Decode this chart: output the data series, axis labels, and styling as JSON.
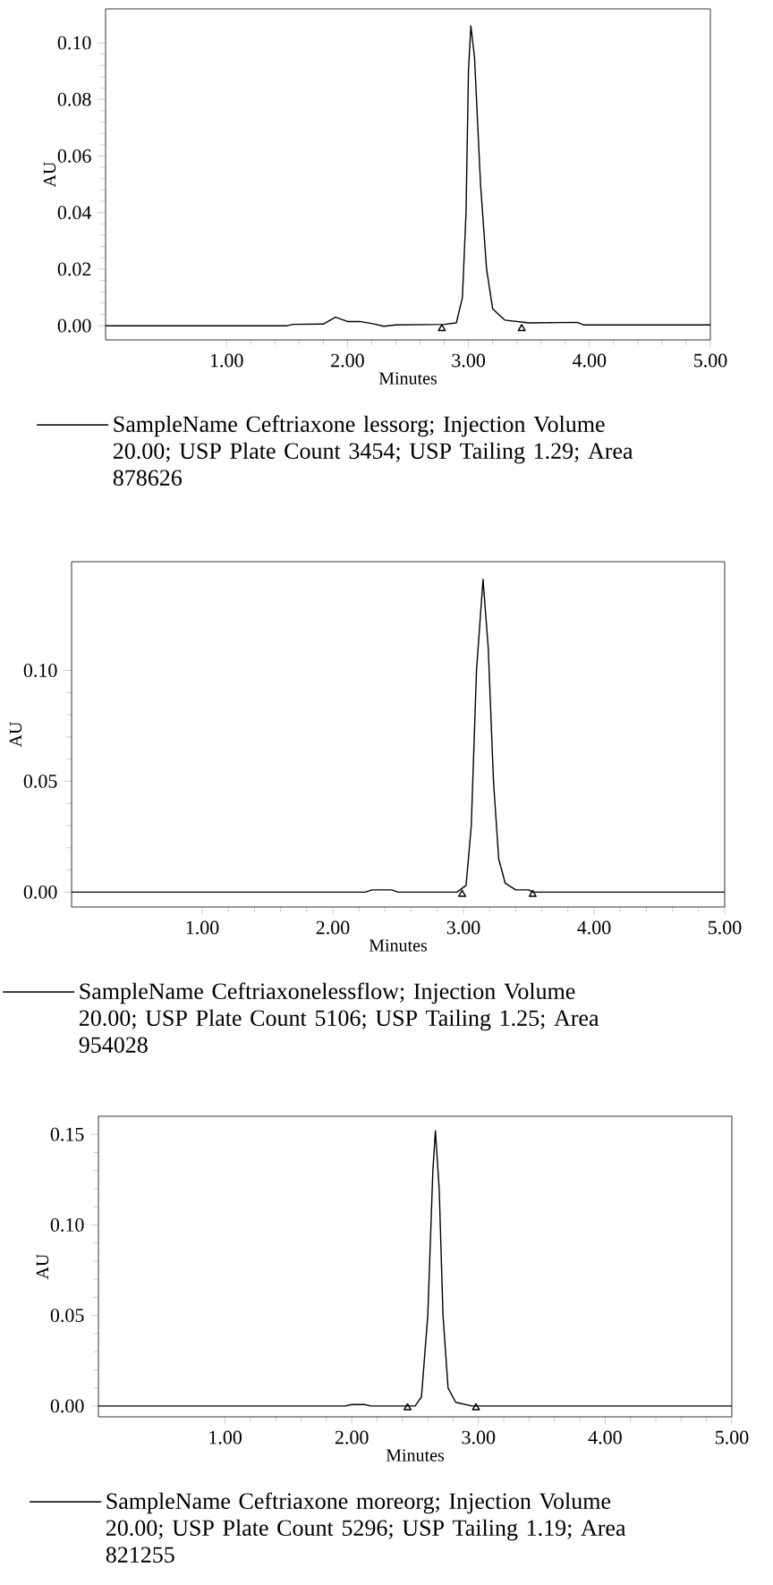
{
  "chart_data": [
    {
      "type": "line",
      "xlabel": "Minutes",
      "ylabel": "AU",
      "legend": "bottom",
      "xlim": [
        0,
        5
      ],
      "ylim": [
        -0.005,
        0.112
      ],
      "xticks": [
        {
          "value": 1,
          "label": "1.00"
        },
        {
          "value": 2,
          "label": "2.00"
        },
        {
          "value": 3,
          "label": "3.00"
        },
        {
          "value": 4,
          "label": "4.00"
        },
        {
          "value": 5,
          "label": "5.00"
        }
      ],
      "yticks": [
        {
          "value": 0,
          "label": "0.00"
        },
        {
          "value": 0.02,
          "label": "0.02"
        },
        {
          "value": 0.04,
          "label": "0.04"
        },
        {
          "value": 0.06,
          "label": "0.06"
        },
        {
          "value": 0.08,
          "label": "0.08"
        },
        {
          "value": 0.1,
          "label": "0.10"
        }
      ],
      "series": [
        {
          "name": "SampleName Ceftriaxone lessorg; Injection Volume 20.00; USP Plate Count 3454; USP Tailing 1.29; Area 878626",
          "color": "#000000",
          "x": [
            0,
            1.5,
            1.55,
            1.8,
            1.9,
            2.0,
            2.1,
            2.2,
            2.3,
            2.4,
            2.8,
            2.9,
            2.95,
            2.98,
            3.0,
            3.02,
            3.05,
            3.1,
            3.15,
            3.2,
            3.3,
            3.5,
            3.9,
            3.95,
            5
          ],
          "values": [
            0,
            0,
            0.0005,
            0.0006,
            0.003,
            0.0015,
            0.0015,
            0.0008,
            -0.0002,
            0.0003,
            0.0005,
            0.001,
            0.01,
            0.04,
            0.09,
            0.106,
            0.095,
            0.05,
            0.02,
            0.006,
            0.002,
            0.001,
            0.0012,
            0.0003,
            0.0003
          ]
        },
        {
          "type": "scatter",
          "marker": "triangle",
          "color": "#000000",
          "x": [
            2.78,
            3.44
          ],
          "values": [
            -0.001,
            -0.001
          ]
        }
      ]
    },
    {
      "type": "line",
      "xlabel": "Minutes",
      "ylabel": "AU",
      "legend": "bottom",
      "xlim": [
        0,
        5
      ],
      "ylim": [
        -0.0067,
        0.149
      ],
      "xticks": [
        {
          "value": 1,
          "label": "1.00"
        },
        {
          "value": 2,
          "label": "2.00"
        },
        {
          "value": 3,
          "label": "3.00"
        },
        {
          "value": 4,
          "label": "4.00"
        },
        {
          "value": 5,
          "label": "5.00"
        }
      ],
      "yticks": [
        {
          "value": 0,
          "label": "0.00"
        },
        {
          "value": 0.05,
          "label": "0.05"
        },
        {
          "value": 0.1,
          "label": "0.10"
        }
      ],
      "series": [
        {
          "name": "SampleName Ceftriaxonelessflow; Injection Volume 20.00; USP Plate Count 5106; USP Tailing 1.25; Area 954028",
          "color": "#000000",
          "x": [
            0,
            2.25,
            2.3,
            2.45,
            2.5,
            2.95,
            3.02,
            3.06,
            3.1,
            3.15,
            3.19,
            3.23,
            3.27,
            3.32,
            3.4,
            3.5,
            3.53,
            5
          ],
          "values": [
            0,
            0,
            0.001,
            0.001,
            0,
            0,
            0.003,
            0.03,
            0.1,
            0.141,
            0.11,
            0.05,
            0.015,
            0.004,
            0.001,
            0.001,
            0,
            0
          ]
        },
        {
          "type": "scatter",
          "marker": "triangle",
          "color": "#000000",
          "x": [
            2.99,
            3.53
          ],
          "values": [
            -0.001,
            -0.001
          ]
        }
      ]
    },
    {
      "type": "line",
      "xlabel": "Minutes",
      "ylabel": "AU",
      "legend": "bottom",
      "xlim": [
        0,
        5
      ],
      "ylim": [
        -0.006,
        0.16
      ],
      "xticks": [
        {
          "value": 1,
          "label": "1.00"
        },
        {
          "value": 2,
          "label": "2.00"
        },
        {
          "value": 3,
          "label": "3.00"
        },
        {
          "value": 4,
          "label": "4.00"
        },
        {
          "value": 5,
          "label": "5.00"
        }
      ],
      "yticks": [
        {
          "value": 0,
          "label": "0.00"
        },
        {
          "value": 0.05,
          "label": "0.05"
        },
        {
          "value": 0.1,
          "label": "0.10"
        },
        {
          "value": 0.15,
          "label": "0.15"
        }
      ],
      "series": [
        {
          "name": "SampleName Ceftriaxone moreorg; Injection Volume 20.00; USP Plate Count 5296; USP Tailing 1.19; Area 821255",
          "color": "#000000",
          "x": [
            0,
            1.95,
            2.0,
            2.1,
            2.15,
            2.5,
            2.55,
            2.6,
            2.64,
            2.66,
            2.69,
            2.72,
            2.76,
            2.82,
            2.95,
            5
          ],
          "values": [
            0,
            0,
            0.0008,
            0.0008,
            0,
            0,
            0.005,
            0.05,
            0.13,
            0.152,
            0.12,
            0.05,
            0.01,
            0.002,
            0,
            0
          ]
        },
        {
          "type": "scatter",
          "marker": "triangle",
          "color": "#000000",
          "x": [
            2.44,
            2.98
          ],
          "values": [
            -0.001,
            -0.001
          ]
        }
      ]
    }
  ]
}
